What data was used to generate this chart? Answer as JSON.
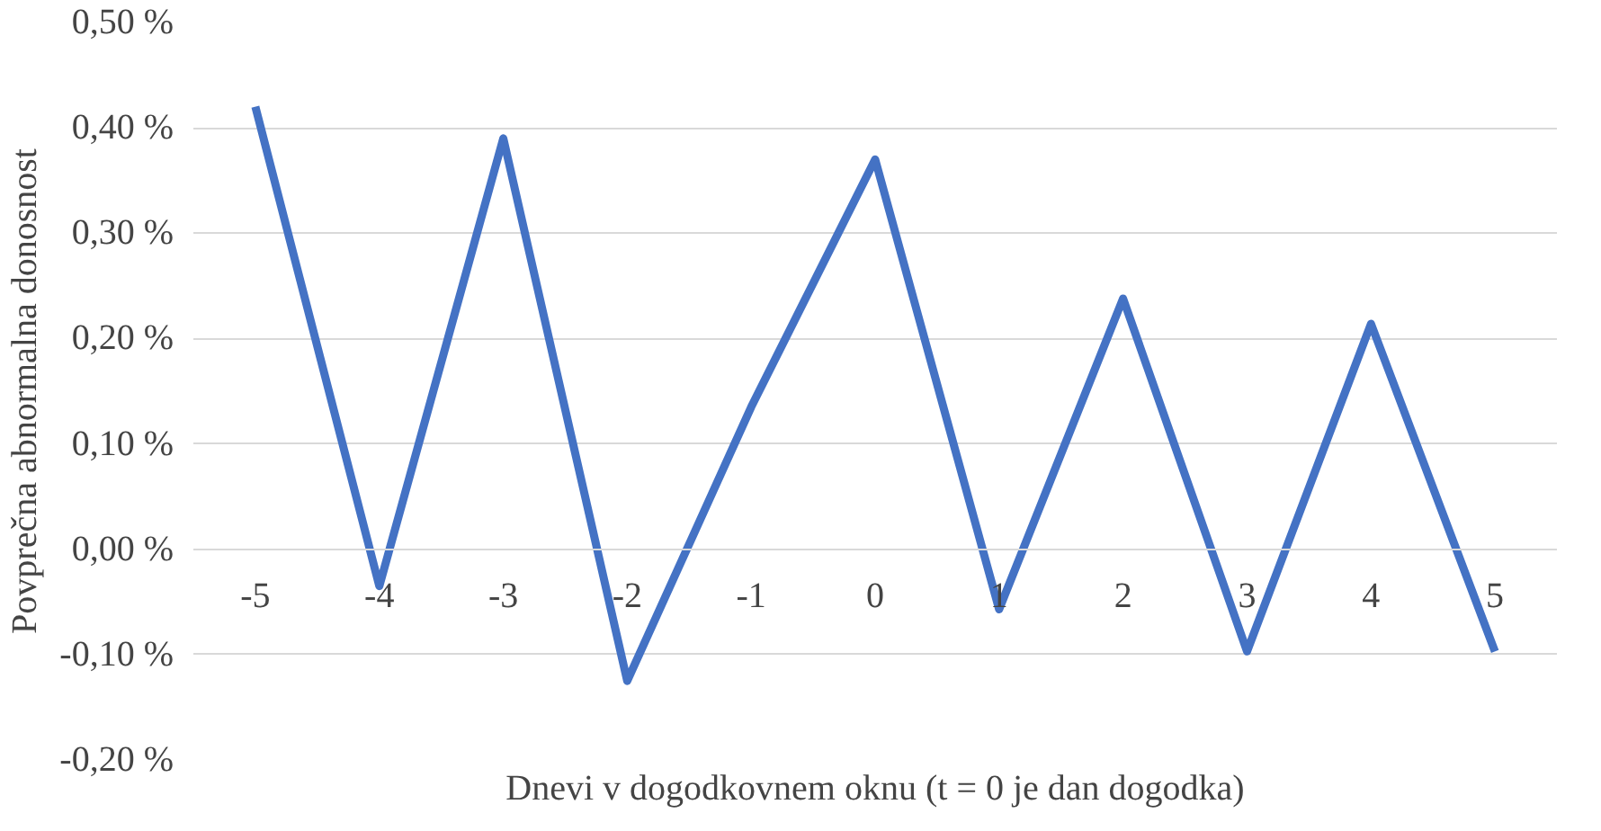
{
  "chart_data": {
    "type": "line",
    "xlabel": "Dnevi v dogodkovnem oknu (t = 0 je dan dogodka)",
    "ylabel": "Povprečna abnormalna donosnost",
    "categories": [
      "-5",
      "-4",
      "-3",
      "-2",
      "-1",
      "0",
      "1",
      "2",
      "3",
      "4",
      "5"
    ],
    "series": [
      {
        "color": "#4472c4",
        "values": [
          0.42,
          -0.035,
          0.39,
          -0.125,
          0.135,
          0.37,
          -0.057,
          0.238,
          -0.097,
          0.214,
          -0.097
        ]
      }
    ],
    "ylim": [
      -0.2,
      0.5
    ],
    "yticks": [
      {
        "value": -0.2,
        "label": "-0,20 %"
      },
      {
        "value": -0.1,
        "label": "-0,10 %"
      },
      {
        "value": 0,
        "label": "0,00 %"
      },
      {
        "value": 0.1,
        "label": "0,10 %"
      },
      {
        "value": 0.2,
        "label": "0,20 %"
      },
      {
        "value": 0.3,
        "label": "0,30 %"
      },
      {
        "value": 0.4,
        "label": "0,40 %"
      },
      {
        "value": 0.5,
        "label": "0,50 %"
      }
    ],
    "grid": "y",
    "marker": "none",
    "line_style": "solid"
  }
}
